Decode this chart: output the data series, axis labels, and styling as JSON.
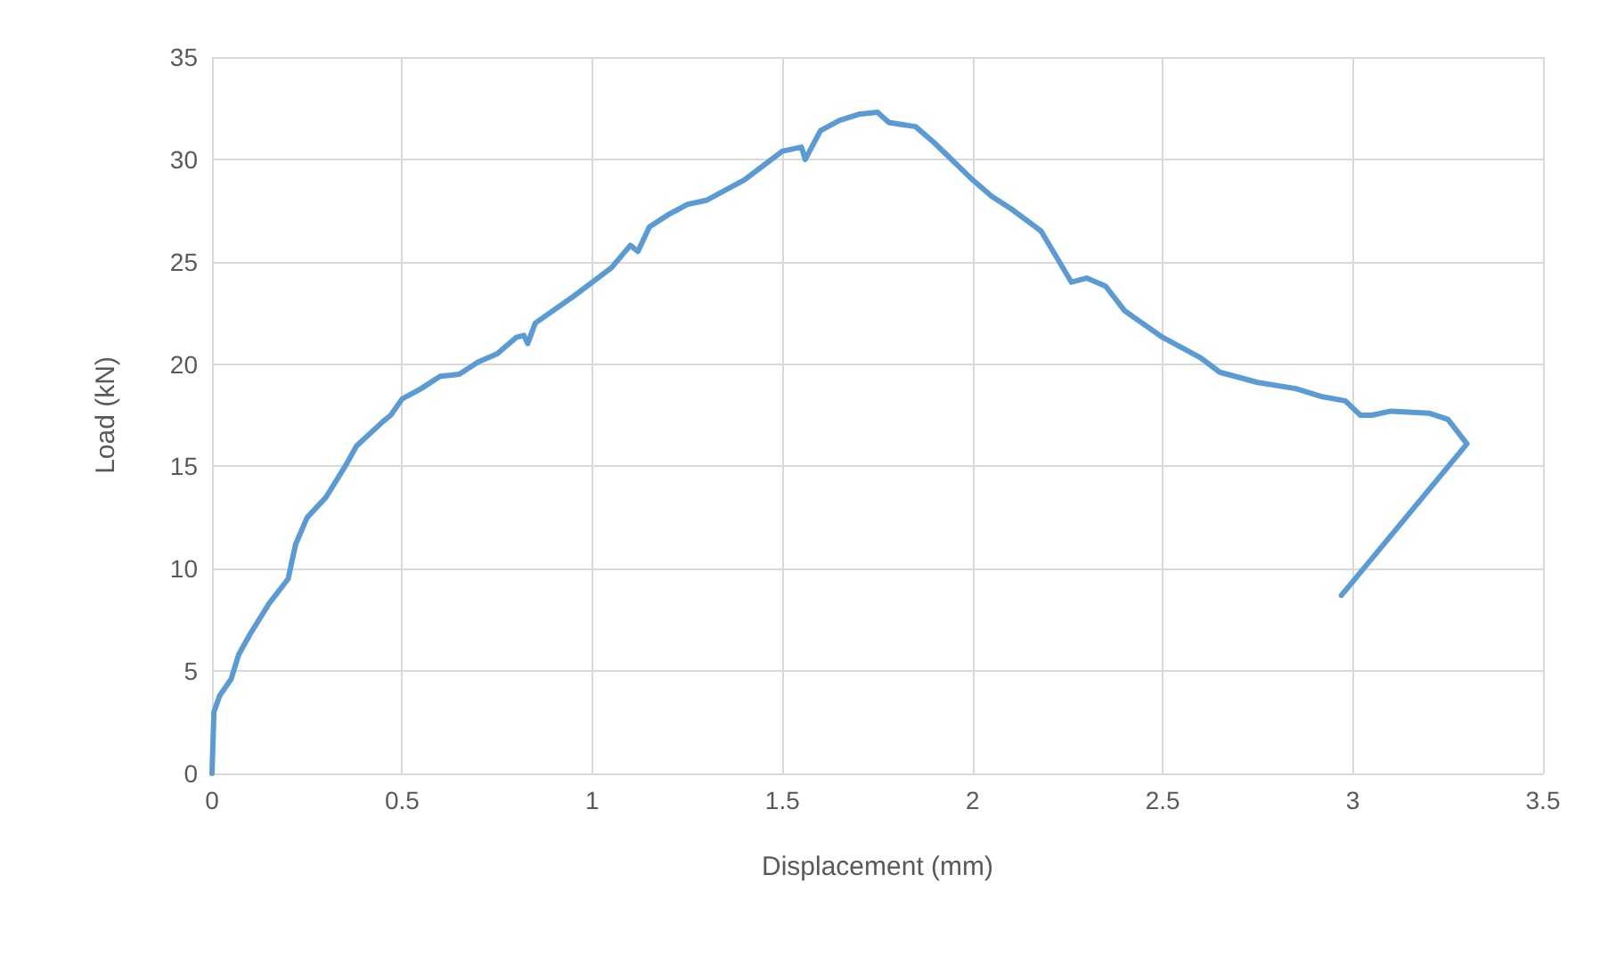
{
  "chart_data": {
    "type": "line",
    "xlabel": "Displacement (mm)",
    "ylabel": "Load (kN)",
    "xlim": [
      0,
      3.5
    ],
    "xticks": [
      0,
      0.5,
      1,
      1.5,
      2,
      2.5,
      3,
      3.5
    ],
    "ylim": [
      0,
      35
    ],
    "yticks": [
      0,
      5,
      10,
      15,
      20,
      25,
      30,
      35
    ],
    "grid": true,
    "marker": "none",
    "line_style": "solid",
    "series": [
      {
        "color": "#5b9bd5",
        "x": [
          0,
          0.005,
          0.02,
          0.05,
          0.07,
          0.1,
          0.15,
          0.2,
          0.22,
          0.25,
          0.3,
          0.35,
          0.38,
          0.45,
          0.47,
          0.5,
          0.55,
          0.6,
          0.65,
          0.7,
          0.75,
          0.8,
          0.82,
          0.83,
          0.85,
          0.95,
          1.05,
          1.1,
          1.12,
          1.15,
          1.2,
          1.25,
          1.3,
          1.35,
          1.4,
          1.45,
          1.5,
          1.55,
          1.56,
          1.6,
          1.65,
          1.7,
          1.75,
          1.78,
          1.85,
          1.9,
          2.0,
          2.05,
          2.1,
          2.18,
          2.26,
          2.3,
          2.35,
          2.4,
          2.5,
          2.6,
          2.65,
          2.75,
          2.85,
          2.92,
          2.98,
          3.02,
          3.05,
          3.1,
          3.2,
          3.25,
          3.3,
          2.97
        ],
        "values": [
          0,
          3,
          3.8,
          4.6,
          5.8,
          6.8,
          8.3,
          9.5,
          11.2,
          12.5,
          13.5,
          15,
          16,
          17.2,
          17.5,
          18.3,
          18.8,
          19.4,
          19.5,
          20.1,
          20.5,
          21.3,
          21.4,
          21,
          22,
          23.3,
          24.7,
          25.8,
          25.5,
          26.7,
          27.3,
          27.8,
          28,
          28.5,
          29,
          29.7,
          30.4,
          30.6,
          30,
          31.4,
          31.9,
          32.2,
          32.3,
          31.8,
          31.6,
          30.8,
          29,
          28.2,
          27.6,
          26.5,
          24,
          24.2,
          23.8,
          22.6,
          21.3,
          20.3,
          19.6,
          19.1,
          18.8,
          18.4,
          18.2,
          17.5,
          17.5,
          17.7,
          17.6,
          17.3,
          16.1,
          8.7
        ]
      }
    ]
  }
}
